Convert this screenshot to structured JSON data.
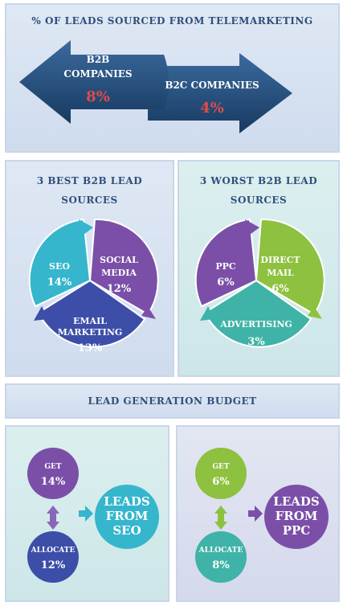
{
  "telemarketing": {
    "title": "% OF LEADS SOURCED FROM TELEMARKETING",
    "b2b_line1": "B2B",
    "b2b_line2": "COMPANIES",
    "b2b_value": "8%",
    "b2c_label": "B2C COMPANIES",
    "b2c_value": "4%"
  },
  "best": {
    "title_line1": "3 BEST B2B LEAD",
    "title_line2": "SOURCES",
    "seo_label": "SEO",
    "seo_value": "14%",
    "social_line1": "SOCIAL",
    "social_line2": "MEDIA",
    "social_value": "12%",
    "email_line1": "EMAIL",
    "email_line2": "MARKETING",
    "email_value": "13%"
  },
  "worst": {
    "title_line1": "3 WORST B2B LEAD",
    "title_line2": "SOURCES",
    "ppc_label": "PPC",
    "ppc_value": "6%",
    "direct_line1": "DIRECT",
    "direct_line2": "MAIL",
    "direct_value": "6%",
    "adv_label": "ADVERTISING",
    "adv_value": "3%"
  },
  "budget": {
    "title": "LEAD GENERATION BUDGET",
    "seo": {
      "get_label": "GET",
      "get_value": "14%",
      "allocate_label": "ALLOCATE",
      "allocate_value": "12%",
      "result_line1": "LEADS",
      "result_line2": "FROM",
      "result_line3": "SEO"
    },
    "ppc": {
      "get_label": "GET",
      "get_value": "6%",
      "allocate_label": "ALLOCATE",
      "allocate_value": "8%",
      "result_line1": "LEADS",
      "result_line2": "FROM",
      "result_line3": "PPC"
    }
  },
  "colors": {
    "navy": "#1f4e79",
    "teal": "#2fb5c9",
    "purple": "#7a4aa6",
    "indigo": "#3b4ba8",
    "green": "#8fbf3f",
    "sea": "#3fb3a7",
    "title_text": "#2e4f7a"
  }
}
